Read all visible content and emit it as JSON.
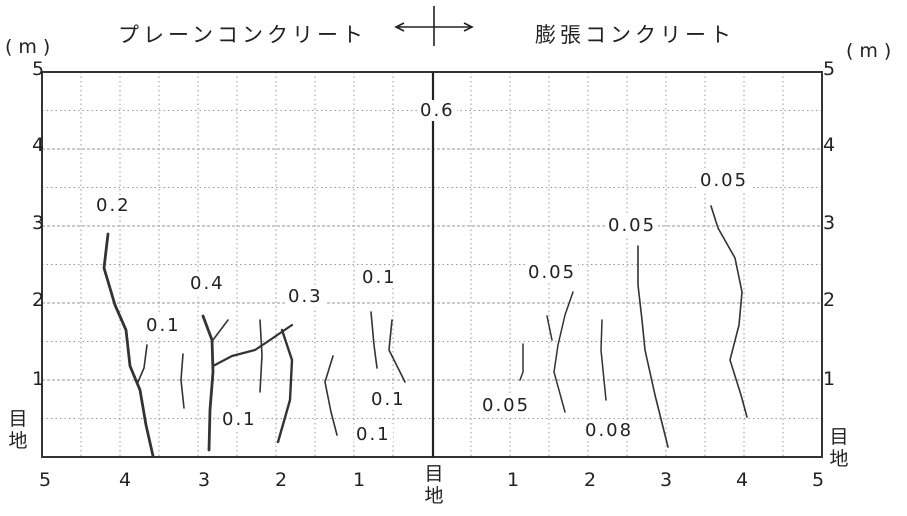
{
  "header": {
    "left_title": "プレーンコンクリート",
    "right_title": "膨張コンクリート",
    "unit_left": "(m)",
    "unit_right": "(m)"
  },
  "axes": {
    "y_ticks": [
      "1",
      "2",
      "3",
      "4",
      "5"
    ],
    "x_ticks_left": [
      "5",
      "4",
      "3",
      "2",
      "1"
    ],
    "x_ticks_right": [
      "1",
      "2",
      "3",
      "4",
      "5"
    ],
    "joint_label": "目地"
  },
  "crack_widths": {
    "left": [
      "0.2",
      "0.4",
      "0.1",
      "0.3",
      "0.1",
      "0.1",
      "0.1",
      "0.1"
    ],
    "center": "0.6",
    "right": [
      "0.05",
      "0.05",
      "0.05",
      "0.05",
      "0.08"
    ]
  },
  "colors": {
    "ink": "#222222",
    "grid": "#9a9a9a",
    "background": "#ffffff"
  }
}
